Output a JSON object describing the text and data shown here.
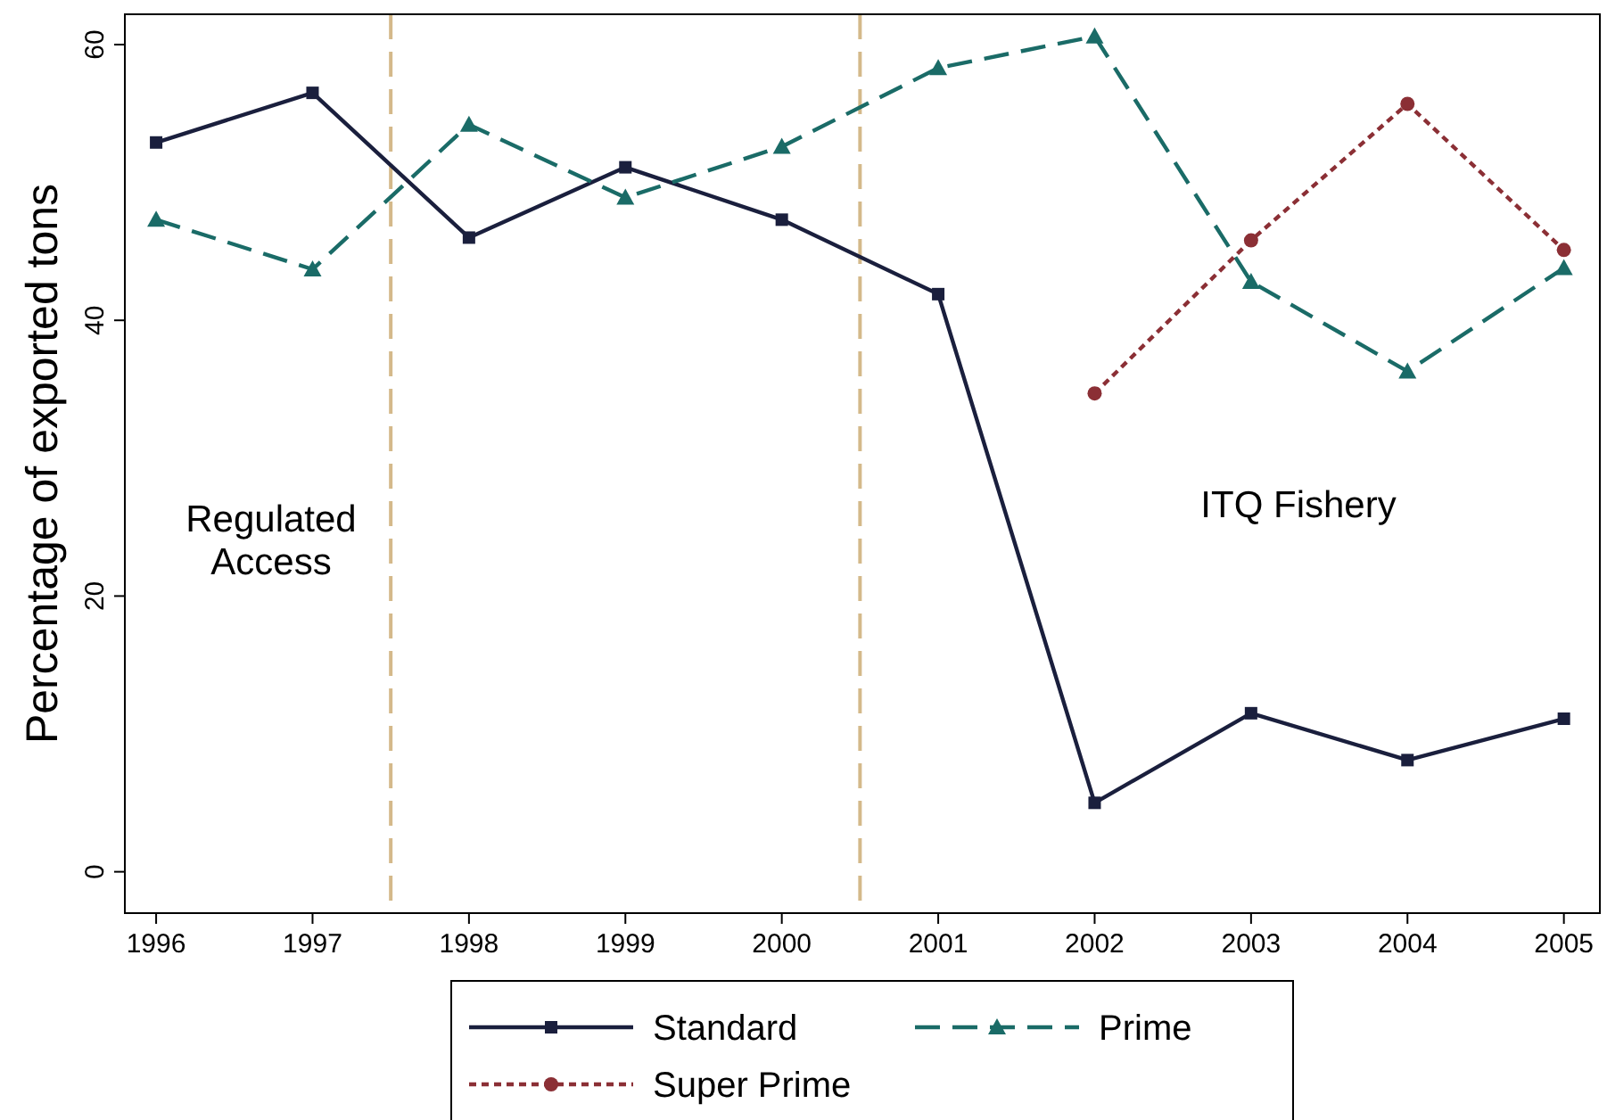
{
  "chart_data": {
    "type": "line",
    "ylabel": "Percentage of exported tons",
    "x": [
      1996,
      1997,
      1998,
      1999,
      2000,
      2001,
      2002,
      2003,
      2004,
      2005
    ],
    "xlim": [
      1995.8,
      2005.23
    ],
    "xticks": [
      1996,
      1997,
      1998,
      1999,
      2000,
      2001,
      2002,
      2003,
      2004,
      2005
    ],
    "ylim": [
      -3,
      62.2
    ],
    "yticks": [
      0,
      20,
      40,
      60
    ],
    "grid": false,
    "legend": "bottom",
    "series": [
      {
        "name": "Standard",
        "color": "#1a1f3d",
        "marker": "square",
        "line_style": "solid",
        "values": [
          52.9,
          56.5,
          46.0,
          51.1,
          47.3,
          41.9,
          5.0,
          11.5,
          8.1,
          11.1
        ]
      },
      {
        "name": "Prime",
        "color": "#1a6b67",
        "marker": "triangle",
        "line_style": "dashed",
        "values": [
          47.3,
          43.7,
          54.2,
          48.9,
          52.6,
          58.3,
          60.6,
          42.8,
          36.3,
          43.8
        ]
      },
      {
        "name": "Super Prime",
        "color": "#8b2f35",
        "marker": "circle",
        "line_style": "dotted",
        "values": [
          null,
          null,
          null,
          null,
          null,
          null,
          34.7,
          45.8,
          55.7,
          45.1
        ]
      }
    ],
    "ref_lines": [
      {
        "axis": "x",
        "value": 1997.5,
        "color": "#d4b98a",
        "line_style": "dashed"
      },
      {
        "axis": "x",
        "value": 2000.5,
        "color": "#d4b98a",
        "line_style": "dashed"
      }
    ],
    "annotations": [
      "Regulated\nAccess",
      "ITQ Fishery"
    ]
  }
}
